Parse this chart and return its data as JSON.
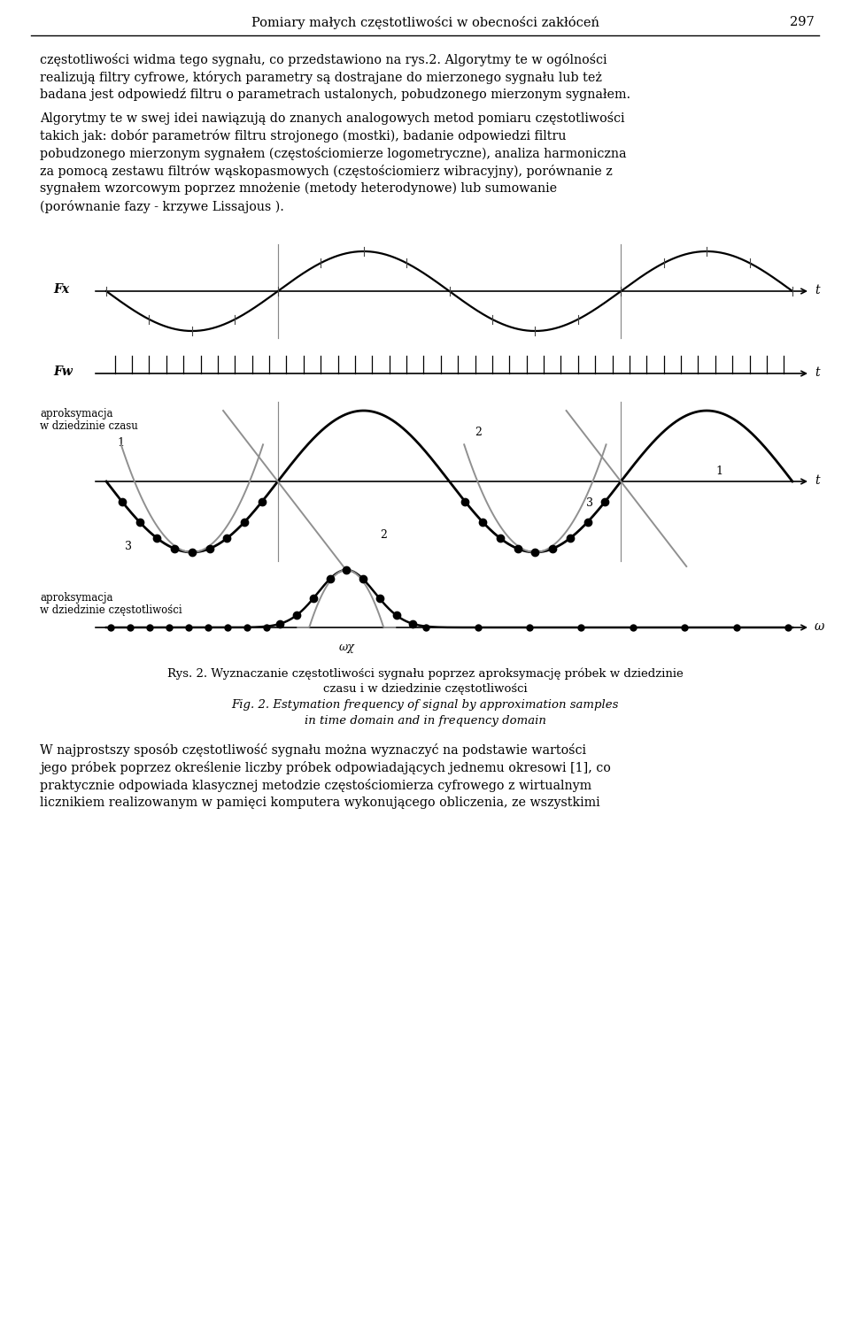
{
  "page_title": "Pomiary małych częstotliwości w obecności zakłóceń",
  "page_number": "297",
  "para1_lines": [
    "częstotliwości widma tego sygnału, co przedstawiono na rys.2. Algorytmy te w ogólności",
    "realizują filtry cyfrowe, których parametry są dostrajane do mierzonego sygnału lub też",
    "badana jest odpowiedź filtru o parametrach ustalonych, pobudzonego mierzonym sygnałem."
  ],
  "para2_lines": [
    "Algorytmy te w swej idei nawiązują do znanych analogowych metod pomiaru częstotliwości",
    "takich jak: dobór parametrów filtru strojonego (mostki), badanie odpowiedzi filtru",
    "pobudzonego mierzonym sygnałem (częstościomierze logometryczne), analiza harmoniczna",
    "za pomocą zestawu filtrów wąskopasmowych (częstościomierz wibracyjny), porównanie z",
    "sygnałem wzorcowym poprzez mnożenie (metody heterodynowe) lub sumowanie",
    "(porównanie fazy - krzywe Lissajous )."
  ],
  "caption_lines": [
    "Rys. 2. Wyznaczanie częstotliwości sygnału poprzez aproksymację próbek w dziedzinie",
    "czasu i w dziedzinie częstotliwości",
    "Fig. 2. Estymation frequency of signal by approximation samples",
    "in time domain and in frequency domain"
  ],
  "para3_lines": [
    "W najprostszy sposób częstotliwość sygnału można wyznaczyć na podstawie wartości",
    "jego próbek poprzez określenie liczby próbek odpowiadających jednemu okresowi [1], co",
    "praktycznie odpowiada klasycznej metodzie częstościomierza cyfrowego z wirtualnym",
    "licznikiem realizowanym w pamięci komputera wykonującego obliczenia, ze wszystkimi"
  ],
  "bg_color": "#ffffff",
  "text_color": "#000000",
  "line_color": "#000000",
  "gray_color": "#909090"
}
